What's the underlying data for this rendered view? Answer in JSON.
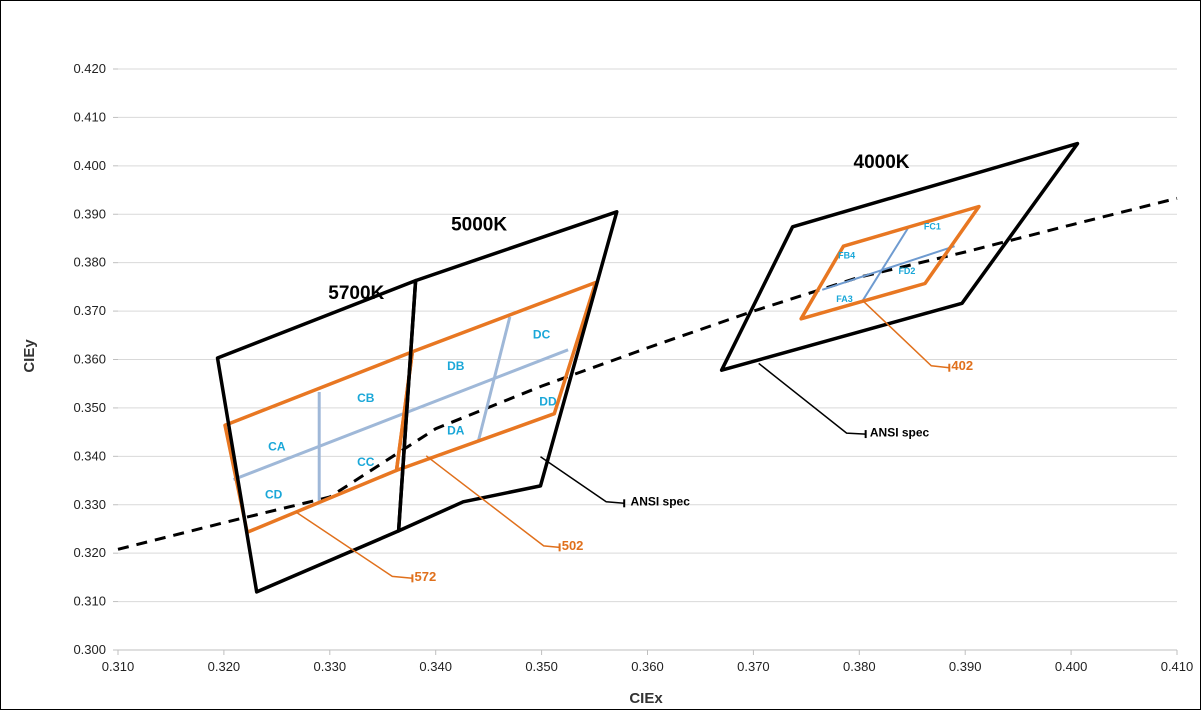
{
  "chart_data": {
    "type": "scatter",
    "xlabel": "CIEx",
    "ylabel": "CIEy",
    "xlim": [
      0.31,
      0.41
    ],
    "ylim": [
      0.3,
      0.42
    ],
    "x_ticks": [
      "0.310",
      "0.320",
      "0.330",
      "0.340",
      "0.350",
      "0.360",
      "0.370",
      "0.380",
      "0.390",
      "0.400",
      "0.410"
    ],
    "y_ticks": [
      "0.300",
      "0.310",
      "0.320",
      "0.330",
      "0.340",
      "0.350",
      "0.360",
      "0.370",
      "0.380",
      "0.390",
      "0.400",
      "0.410",
      "0.420"
    ],
    "colors": {
      "ansi": "#000000",
      "bin_outline": "#e87722",
      "bin_divider": "#9fb8d8",
      "bin_divider_4000": "#6f9bd0",
      "bin_text": "#1aa7d8",
      "callout_orange": "#e0701c"
    },
    "blackbody_locus": [
      [
        0.31,
        0.3208
      ],
      [
        0.32,
        0.3263
      ],
      [
        0.33,
        0.3316
      ],
      [
        0.34,
        0.3457
      ],
      [
        0.35,
        0.3545
      ],
      [
        0.36,
        0.3624
      ],
      [
        0.37,
        0.37
      ],
      [
        0.38,
        0.377
      ],
      [
        0.39,
        0.3822
      ],
      [
        0.4,
        0.3878
      ],
      [
        0.41,
        0.3933
      ]
    ],
    "ansi_regions": [
      {
        "label": "5700K",
        "label_at": [
          0.3325,
          0.3725
        ],
        "points": [
          [
            0.3194,
            0.3603
          ],
          [
            0.3381,
            0.3763
          ],
          [
            0.3365,
            0.3246
          ],
          [
            0.3231,
            0.312
          ]
        ]
      },
      {
        "label": "5000K",
        "label_at": [
          0.3441,
          0.3866
        ],
        "points": [
          [
            0.3381,
            0.3763
          ],
          [
            0.3571,
            0.3905
          ],
          [
            0.3499,
            0.3339
          ],
          [
            0.3426,
            0.3306
          ],
          [
            0.3365,
            0.3246
          ]
        ]
      },
      {
        "label": "4000K",
        "label_at": [
          0.3821,
          0.3996
        ],
        "points": [
          [
            0.3737,
            0.3874
          ],
          [
            0.4006,
            0.4046
          ],
          [
            0.3897,
            0.3716
          ],
          [
            0.367,
            0.3578
          ]
        ]
      }
    ],
    "bin_regions": [
      {
        "label": "572",
        "points": [
          [
            0.3201,
            0.3464
          ],
          [
            0.3378,
            0.3616
          ],
          [
            0.3363,
            0.3371
          ],
          [
            0.3222,
            0.3243
          ]
        ]
      },
      {
        "label": "502",
        "points": [
          [
            0.3378,
            0.3616
          ],
          [
            0.3551,
            0.3759
          ],
          [
            0.3512,
            0.3488
          ],
          [
            0.3363,
            0.3371
          ]
        ]
      },
      {
        "label": "402",
        "points": [
          [
            0.3785,
            0.3834
          ],
          [
            0.3913,
            0.3916
          ],
          [
            0.3862,
            0.3757
          ],
          [
            0.3745,
            0.3684
          ]
        ]
      }
    ],
    "bin_dividers": [
      {
        "from": [
          0.3209,
          0.3352
        ],
        "to": [
          0.3525,
          0.362
        ]
      },
      {
        "from": [
          0.329,
          0.3533
        ],
        "to": [
          0.329,
          0.3303
        ]
      },
      {
        "from": [
          0.347,
          0.3688
        ],
        "to": [
          0.344,
          0.3429
        ]
      },
      {
        "from": [
          0.3765,
          0.3744
        ],
        "to": [
          0.389,
          0.3834
        ],
        "style": "4000"
      },
      {
        "from": [
          0.3847,
          0.3875
        ],
        "to": [
          0.3803,
          0.3721
        ],
        "style": "4000"
      }
    ],
    "bin_labels": [
      {
        "text": "CA",
        "at": [
          0.325,
          0.3412
        ]
      },
      {
        "text": "CB",
        "at": [
          0.3334,
          0.3512
        ]
      },
      {
        "text": "CC",
        "at": [
          0.3334,
          0.338
        ]
      },
      {
        "text": "CD",
        "at": [
          0.3247,
          0.3313
        ]
      },
      {
        "text": "DA",
        "at": [
          0.3419,
          0.3445
        ]
      },
      {
        "text": "DB",
        "at": [
          0.3419,
          0.3578
        ]
      },
      {
        "text": "DC",
        "at": [
          0.35,
          0.3643
        ]
      },
      {
        "text": "DD",
        "at": [
          0.3506,
          0.3505
        ]
      },
      {
        "text": "FA3",
        "at": [
          0.3786,
          0.3719
        ],
        "small": true
      },
      {
        "text": "FB4",
        "at": [
          0.3788,
          0.3809
        ],
        "small": true
      },
      {
        "text": "FC1",
        "at": [
          0.3869,
          0.3869
        ],
        "small": true
      },
      {
        "text": "FD2",
        "at": [
          0.3845,
          0.3777
        ],
        "small": true
      }
    ],
    "callouts": [
      {
        "text": "ANSI spec",
        "color": "black",
        "line": [
          [
            0.3499,
            0.3399
          ],
          [
            0.3561,
            0.3306
          ],
          [
            0.3578,
            0.3303
          ],
          [
            0.3578,
            0.3303
          ]
        ],
        "text_at": [
          0.3584,
          0.3298
        ]
      },
      {
        "text": "ANSI spec",
        "color": "black",
        "line": [
          [
            0.3705,
            0.3592
          ],
          [
            0.3788,
            0.3448
          ],
          [
            0.3806,
            0.3446
          ],
          [
            0.3806,
            0.3446
          ]
        ],
        "text_at": [
          0.381,
          0.3441
        ]
      },
      {
        "text": "572",
        "color": "orange",
        "line": [
          [
            0.3268,
            0.3285
          ],
          [
            0.3359,
            0.3152
          ],
          [
            0.3378,
            0.3148
          ],
          [
            0.3378,
            0.3148
          ]
        ],
        "text_at": [
          0.338,
          0.3143
        ]
      },
      {
        "text": "502",
        "color": "orange",
        "line": [
          [
            0.3391,
            0.3401
          ],
          [
            0.3502,
            0.3215
          ],
          [
            0.3517,
            0.3212
          ],
          [
            0.3517,
            0.3212
          ]
        ],
        "text_at": [
          0.3519,
          0.3207
        ]
      },
      {
        "text": "402",
        "color": "orange",
        "line": [
          [
            0.3803,
            0.3722
          ],
          [
            0.3868,
            0.3587
          ],
          [
            0.3885,
            0.3583
          ],
          [
            0.3885,
            0.3583
          ]
        ],
        "text_at": [
          0.3887,
          0.3578
        ]
      }
    ]
  }
}
